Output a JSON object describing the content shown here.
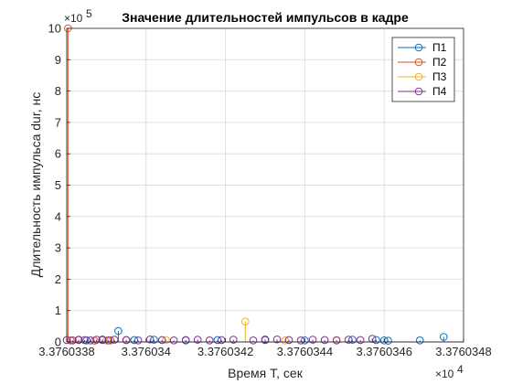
{
  "chart_data": {
    "type": "scatter",
    "title": "Значение длительностей импульсов в кадре",
    "xlabel": "Время T, сек",
    "ylabel": "Длительность импульса dur, нс",
    "x_exponent_label": "×10",
    "x_exponent_power": "4",
    "y_exponent_label": "×10",
    "y_exponent_power": "5",
    "xlim": [
      33760.338,
      33760.348
    ],
    "ylim": [
      0,
      10
    ],
    "x_tick_values": [
      33760.338,
      33760.34,
      33760.342,
      33760.344,
      33760.346,
      33760.348
    ],
    "x_tick_labels": [
      "3.3760338",
      "3.376034",
      "3.3760342",
      "3.3760344",
      "3.3760346",
      "3.3760348"
    ],
    "y_tick_values": [
      0,
      1,
      2,
      3,
      4,
      5,
      6,
      7,
      8,
      9,
      10
    ],
    "y_tick_labels": [
      "0",
      "1",
      "2",
      "3",
      "4",
      "5",
      "6",
      "7",
      "8",
      "9",
      "10"
    ],
    "grid": true,
    "legend_position": "top-right",
    "series": [
      {
        "name": "П1",
        "color": "#0072BD",
        "points": [
          [
            33760.3385,
            0.05
          ],
          [
            33760.3389,
            0.08
          ],
          [
            33760.3393,
            0.35
          ],
          [
            33760.3397,
            0.06
          ],
          [
            33760.3402,
            0.07
          ],
          [
            33760.341,
            0.05
          ],
          [
            33760.3418,
            0.06
          ],
          [
            33760.343,
            0.08
          ],
          [
            33760.344,
            0.05
          ],
          [
            33760.3452,
            0.07
          ],
          [
            33760.3458,
            0.06
          ],
          [
            33760.346,
            0.05
          ],
          [
            33760.3461,
            0.04
          ],
          [
            33760.3469,
            0.05
          ],
          [
            33760.3475,
            0.16
          ]
        ]
      },
      {
        "name": "П2",
        "color": "#D95319",
        "points": [
          [
            33760.33803,
            10.0
          ],
          [
            33760.3381,
            0.05
          ],
          [
            33760.3383,
            0.06
          ],
          [
            33760.3387,
            0.04
          ],
          [
            33760.3391,
            0.05
          ],
          [
            33760.3395,
            0.06
          ]
        ]
      },
      {
        "name": "П3",
        "color": "#EDB120",
        "points": [
          [
            33760.339,
            0.05
          ],
          [
            33760.3405,
            0.06
          ],
          [
            33760.3425,
            0.65
          ],
          [
            33760.3435,
            0.05
          ],
          [
            33760.3448,
            0.06
          ]
        ]
      },
      {
        "name": "П4",
        "color": "#7E2F8E",
        "points": [
          [
            33760.338,
            0.06
          ],
          [
            33760.33815,
            0.05
          ],
          [
            33760.3383,
            0.07
          ],
          [
            33760.33845,
            0.06
          ],
          [
            33760.3386,
            0.05
          ],
          [
            33760.33875,
            0.07
          ],
          [
            33760.3389,
            0.06
          ],
          [
            33760.33905,
            0.05
          ],
          [
            33760.3392,
            0.07
          ],
          [
            33760.3395,
            0.06
          ],
          [
            33760.3398,
            0.05
          ],
          [
            33760.3401,
            0.08
          ],
          [
            33760.3404,
            0.06
          ],
          [
            33760.3407,
            0.05
          ],
          [
            33760.341,
            0.06
          ],
          [
            33760.3413,
            0.07
          ],
          [
            33760.3416,
            0.05
          ],
          [
            33760.3419,
            0.06
          ],
          [
            33760.3422,
            0.07
          ],
          [
            33760.3427,
            0.05
          ],
          [
            33760.343,
            0.06
          ],
          [
            33760.3433,
            0.08
          ],
          [
            33760.3436,
            0.06
          ],
          [
            33760.3439,
            0.05
          ],
          [
            33760.3442,
            0.07
          ],
          [
            33760.3445,
            0.06
          ],
          [
            33760.3448,
            0.05
          ],
          [
            33760.3451,
            0.07
          ],
          [
            33760.3454,
            0.06
          ],
          [
            33760.3457,
            0.1
          ]
        ]
      }
    ]
  }
}
